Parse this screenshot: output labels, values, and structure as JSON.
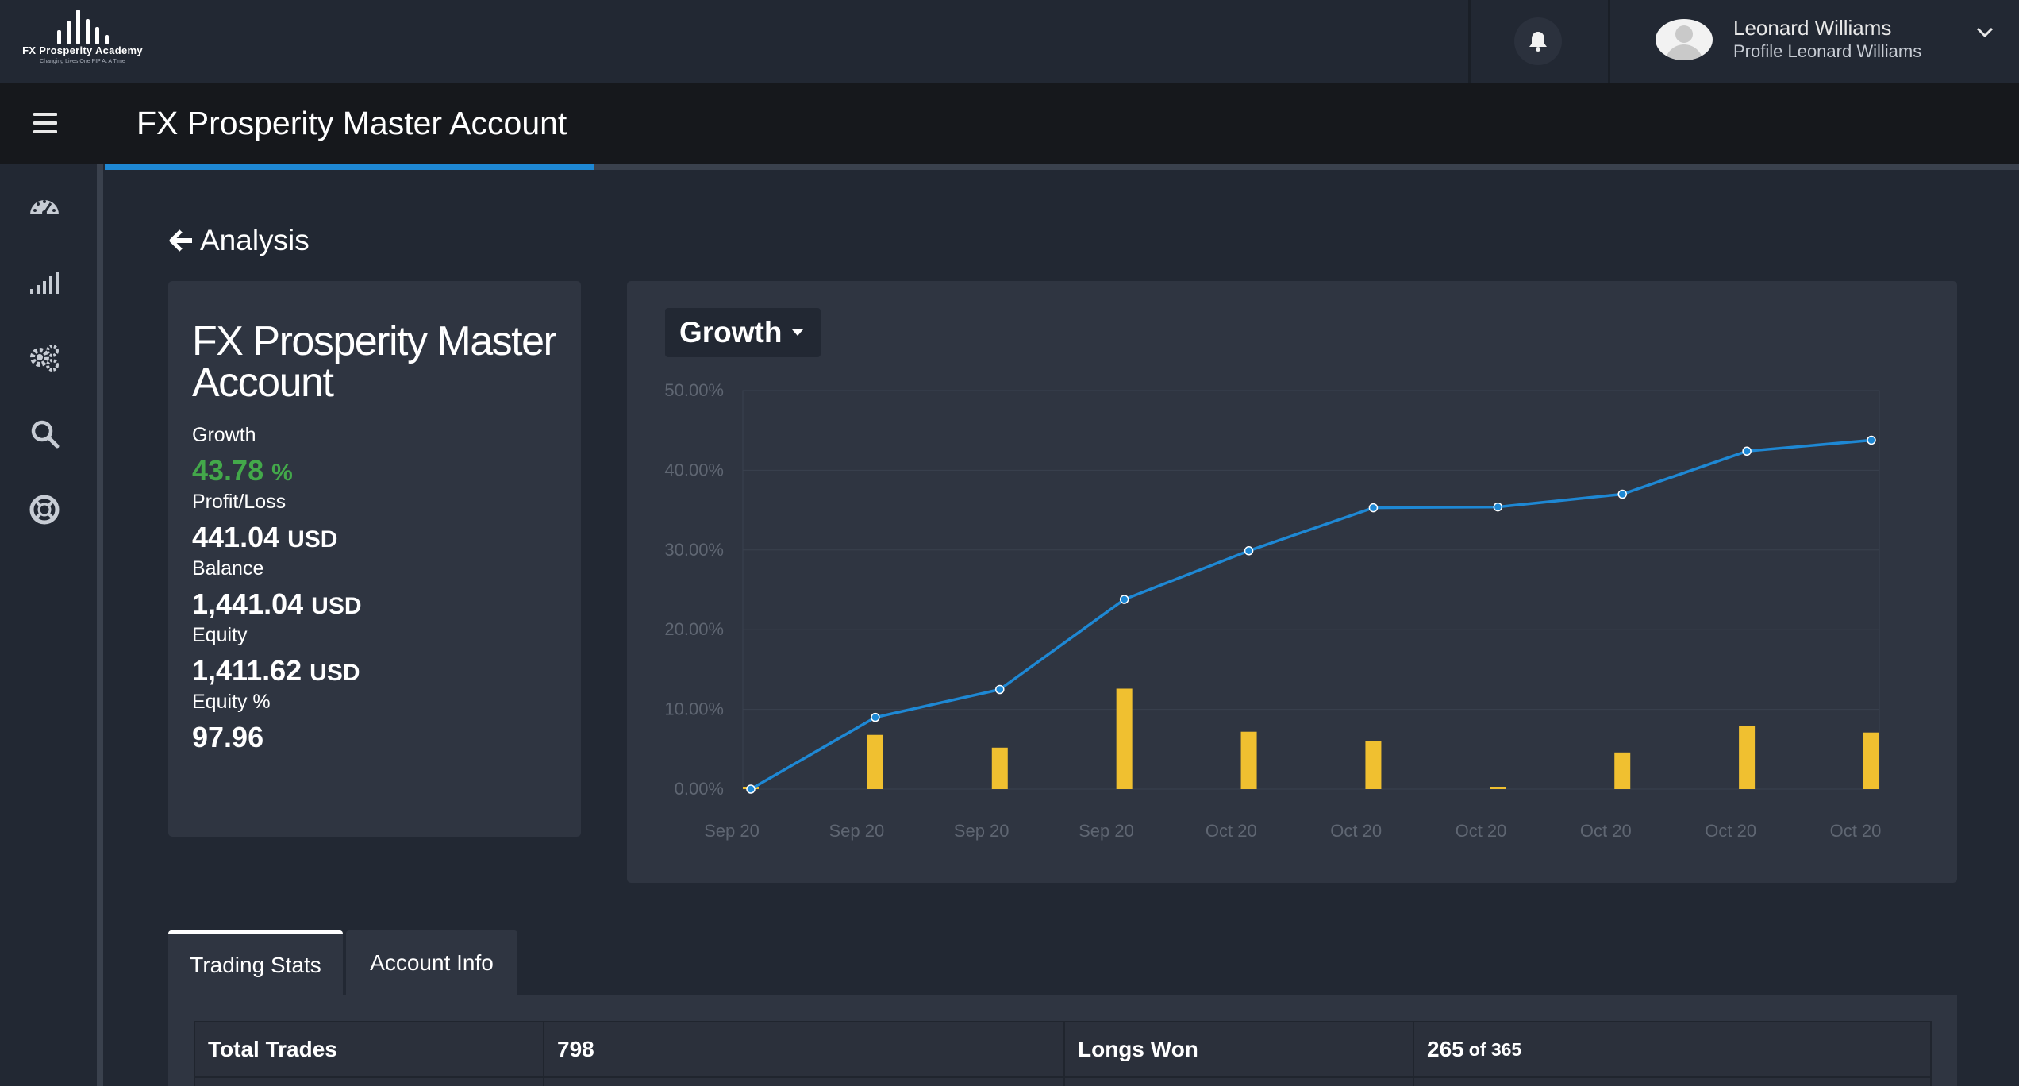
{
  "brand": {
    "name": "FX Prosperity Academy",
    "tagline": "Changing Lives One PIP At A Time"
  },
  "user": {
    "name": "Leonard Williams",
    "subtitle": "Profile Leonard Williams"
  },
  "page": {
    "title": "FX Prosperity Master Account",
    "progress_percent": 25.6,
    "back_label": "Analysis"
  },
  "sidebar": {
    "icons": [
      "dashboard-gauge-icon",
      "signal-bars-icon",
      "settings-gears-icon",
      "search-icon",
      "support-lifebuoy-icon"
    ]
  },
  "summary": {
    "account_name": "FX Prosperity Master Account",
    "growth_label": "Growth",
    "growth_value": "43.78",
    "growth_unit": "%",
    "profit_label": "Profit/Loss",
    "profit_value": "441.04",
    "profit_unit": "USD",
    "balance_label": "Balance",
    "balance_value": "1,441.04",
    "balance_unit": "USD",
    "equity_label": "Equity",
    "equity_value": "1,411.62",
    "equity_unit": "USD",
    "equity_pct_label": "Equity %",
    "equity_pct_value": "97.96"
  },
  "chart_select": {
    "label": "Growth"
  },
  "chart_data": {
    "type": "line",
    "categories": [
      "Sep 20",
      "Sep 20",
      "Sep 20",
      "Sep 20",
      "Oct 20",
      "Oct 20",
      "Oct 20",
      "Oct 20",
      "Oct 20",
      "Oct 20"
    ],
    "y_ticks": [
      "0.00%",
      "10.00%",
      "20.00%",
      "30.00%",
      "40.00%",
      "50.00%"
    ],
    "ylim": [
      0,
      50
    ],
    "series": [
      {
        "type": "line",
        "values": [
          0,
          9.0,
          12.5,
          23.8,
          29.9,
          35.3,
          35.4,
          37.0,
          42.4,
          43.78
        ]
      },
      {
        "type": "bar",
        "values": [
          0.3,
          6.8,
          5.2,
          12.6,
          7.2,
          6.0,
          0.3,
          4.6,
          7.9,
          7.1
        ]
      }
    ],
    "grid": true,
    "colors": {
      "line": "#1e88d4",
      "bar": "#f0c030",
      "grid": "#3a414e",
      "tick": "#5f6672"
    }
  },
  "tabs": [
    {
      "label": "Trading Stats",
      "active": true
    },
    {
      "label": "Account Info",
      "active": false
    }
  ],
  "trading_stats": {
    "total_trades_label": "Total Trades",
    "total_trades_value": "798",
    "longs_won_label": "Longs Won",
    "longs_won_value": "265",
    "longs_won_of": "of 365"
  }
}
